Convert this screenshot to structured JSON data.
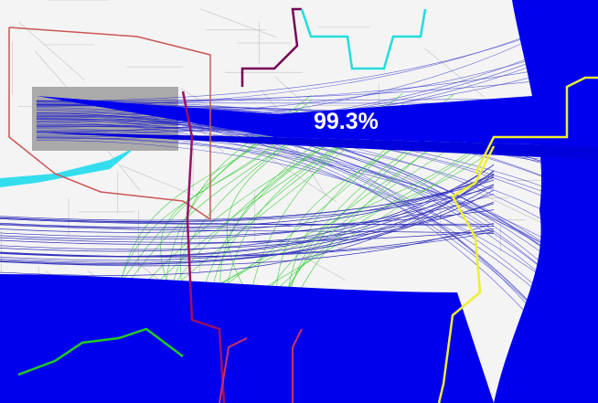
{
  "map": {
    "label": "99.3%"
  }
}
